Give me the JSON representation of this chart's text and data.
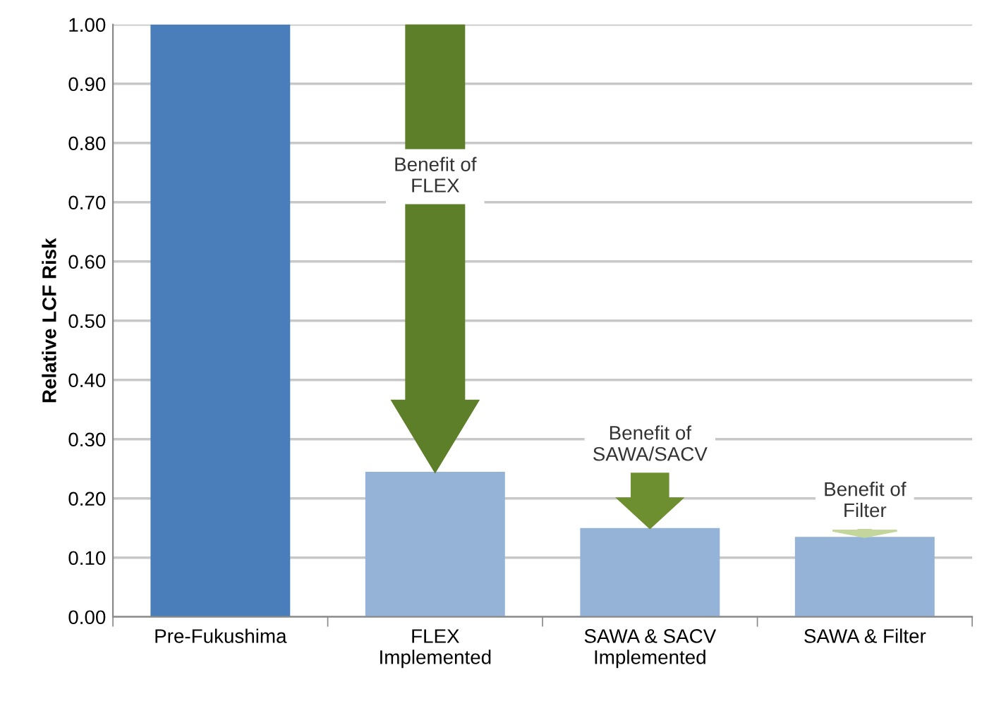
{
  "chart_data": {
    "type": "bar",
    "ylabel": "Relative LCF Risk",
    "categories": [
      "Pre-Fukushima",
      "FLEX\nImplemented",
      "SAWA & SACV\nImplemented",
      "SAWA & Filter"
    ],
    "values": [
      1.0,
      0.245,
      0.15,
      0.135
    ],
    "colors": [
      "#4a7ebb",
      "#95b3d7",
      "#95b3d7",
      "#95b3d7"
    ],
    "ylim": [
      0,
      1.0
    ],
    "yticks": [
      {
        "value": 0,
        "label": "0.00"
      },
      {
        "value": 0.1,
        "label": "0.10"
      },
      {
        "value": 0.2,
        "label": "0.20"
      },
      {
        "value": 0.3,
        "label": "0.30"
      },
      {
        "value": 0.4,
        "label": "0.40"
      },
      {
        "value": 0.5,
        "label": "0.50"
      },
      {
        "value": 0.6,
        "label": "0.60"
      },
      {
        "value": 0.7,
        "label": "0.70"
      },
      {
        "value": 0.8,
        "label": "0.80"
      },
      {
        "value": 0.9,
        "label": "0.90"
      },
      {
        "value": 1.0,
        "label": "1.00"
      }
    ],
    "grid": "y",
    "annotations": [
      "Benefit of\nFLEX",
      "Benefit of\nSAWA/SACV",
      "Benefit of\nFilter"
    ]
  }
}
